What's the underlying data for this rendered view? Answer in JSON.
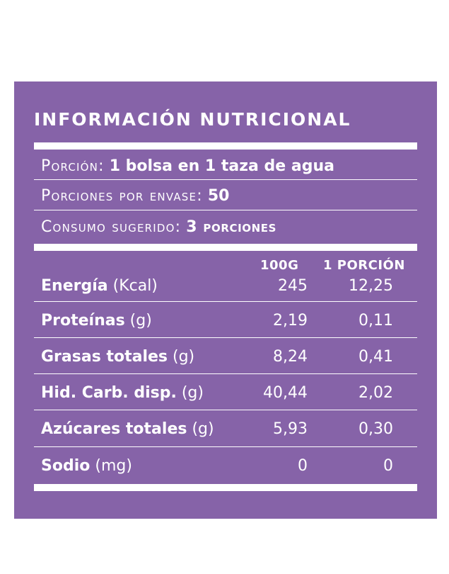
{
  "colors": {
    "panel": "#8663a8",
    "text": "#ffffff",
    "page": "#ffffff"
  },
  "title": "INFORMACIÓN NUTRICIONAL",
  "serving": {
    "portion_label": "Porción:",
    "portion_value": "1 bolsa en 1 taza de agua",
    "per_pack_label": "Porciones por envase:",
    "per_pack_value": "50",
    "suggested_label": "Consumo sugerido:",
    "suggested_value": "3 porciones"
  },
  "columns": {
    "per_100g": "100G",
    "per_portion": "1 PORCIÓN"
  },
  "rows": [
    {
      "name": "Energía",
      "unit": "(Kcal)",
      "per_100g": "245",
      "per_portion": "12,25"
    },
    {
      "name": "Proteínas",
      "unit": "(g)",
      "per_100g": "2,19",
      "per_portion": "0,11"
    },
    {
      "name": "Grasas totales",
      "unit": "(g)",
      "per_100g": "8,24",
      "per_portion": "0,41"
    },
    {
      "name": "Hid. Carb. disp.",
      "unit": "(g)",
      "per_100g": "40,44",
      "per_portion": "2,02"
    },
    {
      "name": "Azúcares totales",
      "unit": "(g)",
      "per_100g": "5,93",
      "per_portion": "0,30"
    },
    {
      "name": "Sodio",
      "unit": "(mg)",
      "per_100g": "0",
      "per_portion": "0"
    }
  ]
}
